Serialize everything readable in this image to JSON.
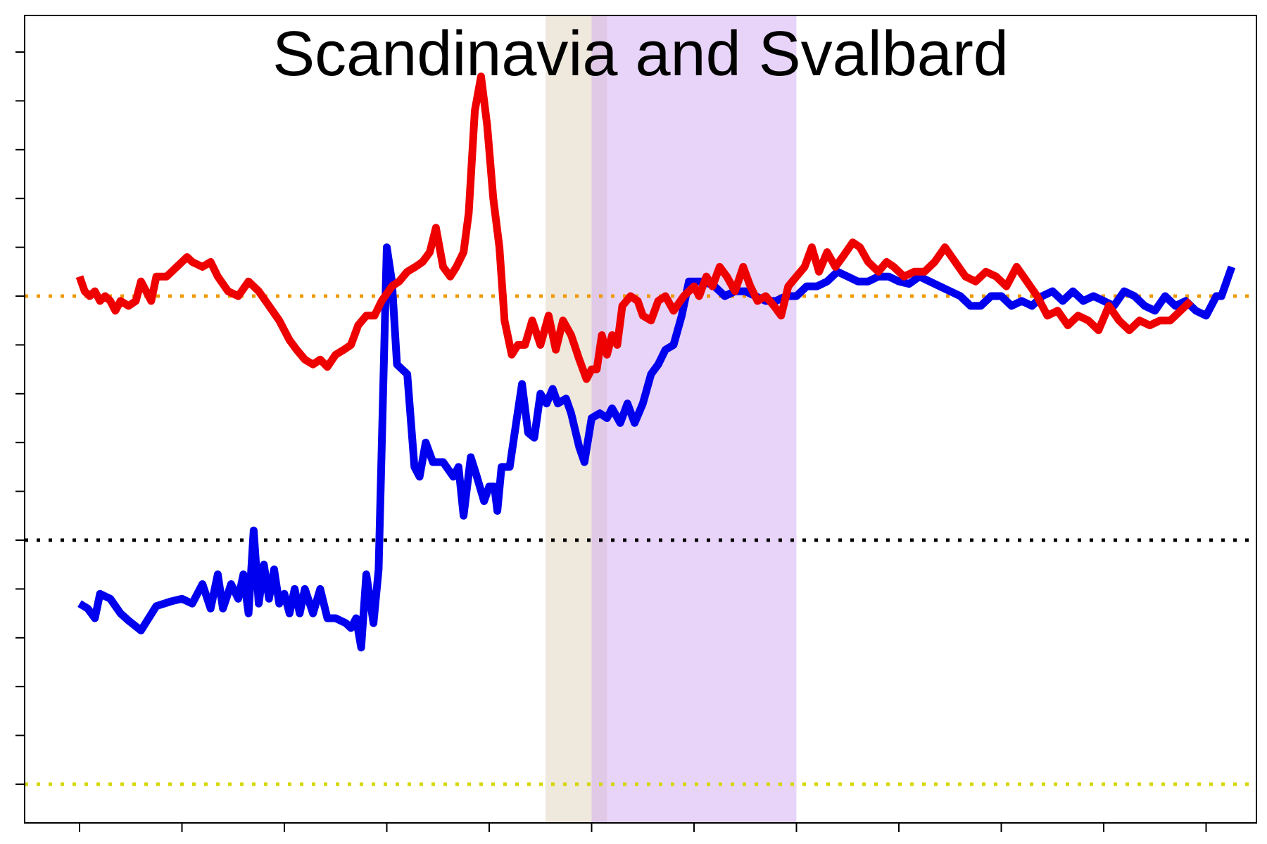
{
  "chart_data": {
    "type": "line",
    "title": "Scandinavia and Svalbard",
    "xlabel": "",
    "ylabel": "",
    "xlim": [
      0,
      11.5
    ],
    "ylim": [
      -5.6,
      10.8
    ],
    "x_ticks": [
      0,
      1,
      2,
      3,
      4,
      5,
      6,
      7,
      8,
      9,
      10,
      11
    ],
    "y_ticks": [
      -5,
      -4,
      -3,
      -2,
      -1,
      0,
      1,
      2,
      3,
      4,
      5,
      6,
      7,
      8,
      9,
      10
    ],
    "grid": false,
    "legend": "none",
    "shaded_regions": [
      {
        "x_start": 4.55,
        "x_end": 5.15,
        "color": "#e6dccb",
        "opacity": 0.65
      },
      {
        "x_start": 5.0,
        "x_end": 7.0,
        "color": "#d2a9f2",
        "opacity": 0.5
      }
    ],
    "reference_lines": [
      {
        "y": 5.0,
        "color": "#ee9900"
      },
      {
        "y": 0.0,
        "color": "#000000"
      },
      {
        "y": -5.0,
        "color": "#d6d600"
      }
    ],
    "series": [
      {
        "color": "#0000ee",
        "points": [
          [
            0,
            -1.3
          ],
          [
            0.08,
            -1.4
          ],
          [
            0.15,
            -1.6
          ],
          [
            0.2,
            -1.1
          ],
          [
            0.3,
            -1.2
          ],
          [
            0.4,
            -1.5
          ],
          [
            0.48,
            -1.65
          ],
          [
            0.6,
            -1.85
          ],
          [
            0.75,
            -1.35
          ],
          [
            0.9,
            -1.25
          ],
          [
            1.0,
            -1.2
          ],
          [
            1.1,
            -1.3
          ],
          [
            1.2,
            -0.9
          ],
          [
            1.28,
            -1.4
          ],
          [
            1.35,
            -0.7
          ],
          [
            1.4,
            -1.4
          ],
          [
            1.48,
            -0.9
          ],
          [
            1.55,
            -1.2
          ],
          [
            1.6,
            -0.7
          ],
          [
            1.65,
            -1.5
          ],
          [
            1.7,
            0.2
          ],
          [
            1.75,
            -1.3
          ],
          [
            1.8,
            -0.5
          ],
          [
            1.85,
            -1.2
          ],
          [
            1.9,
            -0.6
          ],
          [
            1.95,
            -1.3
          ],
          [
            2.0,
            -1.1
          ],
          [
            2.05,
            -1.5
          ],
          [
            2.1,
            -1.0
          ],
          [
            2.15,
            -1.5
          ],
          [
            2.2,
            -1.0
          ],
          [
            2.28,
            -1.5
          ],
          [
            2.35,
            -1.0
          ],
          [
            2.42,
            -1.6
          ],
          [
            2.5,
            -1.6
          ],
          [
            2.6,
            -1.7
          ],
          [
            2.65,
            -1.8
          ],
          [
            2.7,
            -1.6
          ],
          [
            2.75,
            -2.2
          ],
          [
            2.8,
            -0.7
          ],
          [
            2.87,
            -1.7
          ],
          [
            2.92,
            -0.6
          ],
          [
            2.96,
            2.7
          ],
          [
            3.0,
            6.0
          ],
          [
            3.05,
            5.3
          ],
          [
            3.1,
            3.6
          ],
          [
            3.15,
            3.5
          ],
          [
            3.2,
            3.4
          ],
          [
            3.27,
            1.5
          ],
          [
            3.32,
            1.3
          ],
          [
            3.38,
            2.0
          ],
          [
            3.45,
            1.6
          ],
          [
            3.55,
            1.6
          ],
          [
            3.65,
            1.3
          ],
          [
            3.7,
            1.5
          ],
          [
            3.75,
            0.5
          ],
          [
            3.82,
            1.7
          ],
          [
            3.88,
            1.3
          ],
          [
            3.95,
            0.8
          ],
          [
            4.0,
            1.1
          ],
          [
            4.05,
            1.1
          ],
          [
            4.08,
            0.6
          ],
          [
            4.12,
            1.5
          ],
          [
            4.2,
            1.5
          ],
          [
            4.27,
            2.5
          ],
          [
            4.32,
            3.2
          ],
          [
            4.38,
            2.2
          ],
          [
            4.44,
            2.1
          ],
          [
            4.5,
            3.0
          ],
          [
            4.56,
            2.8
          ],
          [
            4.62,
            3.1
          ],
          [
            4.67,
            2.8
          ],
          [
            4.75,
            2.9
          ],
          [
            4.8,
            2.6
          ],
          [
            4.88,
            1.9
          ],
          [
            4.93,
            1.6
          ],
          [
            5.0,
            2.5
          ],
          [
            5.08,
            2.6
          ],
          [
            5.15,
            2.5
          ],
          [
            5.2,
            2.7
          ],
          [
            5.28,
            2.4
          ],
          [
            5.35,
            2.8
          ],
          [
            5.42,
            2.4
          ],
          [
            5.5,
            2.8
          ],
          [
            5.58,
            3.4
          ],
          [
            5.65,
            3.6
          ],
          [
            5.72,
            3.9
          ],
          [
            5.8,
            4.0
          ],
          [
            5.88,
            4.6
          ],
          [
            5.95,
            5.3
          ],
          [
            6.0,
            5.3
          ],
          [
            6.1,
            5.3
          ],
          [
            6.2,
            5.2
          ],
          [
            6.3,
            5.0
          ],
          [
            6.4,
            5.1
          ],
          [
            6.5,
            5.1
          ],
          [
            6.6,
            5.0
          ],
          [
            6.7,
            4.9
          ],
          [
            6.8,
            4.9
          ],
          [
            6.9,
            5.0
          ],
          [
            7.0,
            5.0
          ],
          [
            7.1,
            5.2
          ],
          [
            7.2,
            5.2
          ],
          [
            7.3,
            5.3
          ],
          [
            7.4,
            5.5
          ],
          [
            7.5,
            5.4
          ],
          [
            7.6,
            5.3
          ],
          [
            7.7,
            5.3
          ],
          [
            7.8,
            5.4
          ],
          [
            7.9,
            5.4
          ],
          [
            8.0,
            5.3
          ],
          [
            8.1,
            5.25
          ],
          [
            8.2,
            5.4
          ],
          [
            8.3,
            5.3
          ],
          [
            8.4,
            5.2
          ],
          [
            8.5,
            5.1
          ],
          [
            8.6,
            5.0
          ],
          [
            8.7,
            4.8
          ],
          [
            8.8,
            4.8
          ],
          [
            8.9,
            5.0
          ],
          [
            9.0,
            5.0
          ],
          [
            9.1,
            4.8
          ],
          [
            9.2,
            4.9
          ],
          [
            9.3,
            4.8
          ],
          [
            9.4,
            5.0
          ],
          [
            9.5,
            5.1
          ],
          [
            9.6,
            4.9
          ],
          [
            9.7,
            5.1
          ],
          [
            9.8,
            4.9
          ],
          [
            9.9,
            5.0
          ],
          [
            10.0,
            4.9
          ],
          [
            10.1,
            4.8
          ],
          [
            10.2,
            5.1
          ],
          [
            10.3,
            5.0
          ],
          [
            10.4,
            4.8
          ],
          [
            10.5,
            4.7
          ],
          [
            10.6,
            5.0
          ],
          [
            10.7,
            4.8
          ],
          [
            10.8,
            4.9
          ],
          [
            10.9,
            4.7
          ],
          [
            11.0,
            4.6
          ],
          [
            11.05,
            4.8
          ],
          [
            11.1,
            5.0
          ],
          [
            11.15,
            5.0
          ],
          [
            11.2,
            5.3
          ],
          [
            11.25,
            5.6
          ]
        ]
      },
      {
        "color": "#ee0000",
        "points": [
          [
            0,
            5.4
          ],
          [
            0.05,
            5.1
          ],
          [
            0.1,
            5.0
          ],
          [
            0.15,
            5.1
          ],
          [
            0.2,
            4.9
          ],
          [
            0.25,
            5.0
          ],
          [
            0.3,
            4.9
          ],
          [
            0.35,
            4.7
          ],
          [
            0.4,
            4.9
          ],
          [
            0.48,
            4.8
          ],
          [
            0.55,
            4.9
          ],
          [
            0.6,
            5.3
          ],
          [
            0.65,
            5.1
          ],
          [
            0.7,
            4.9
          ],
          [
            0.75,
            5.4
          ],
          [
            0.85,
            5.4
          ],
          [
            0.95,
            5.6
          ],
          [
            1.05,
            5.8
          ],
          [
            1.1,
            5.7
          ],
          [
            1.2,
            5.6
          ],
          [
            1.28,
            5.7
          ],
          [
            1.35,
            5.4
          ],
          [
            1.45,
            5.1
          ],
          [
            1.55,
            5.0
          ],
          [
            1.65,
            5.3
          ],
          [
            1.75,
            5.1
          ],
          [
            1.85,
            4.8
          ],
          [
            1.95,
            4.5
          ],
          [
            2.05,
            4.1
          ],
          [
            2.12,
            3.9
          ],
          [
            2.2,
            3.7
          ],
          [
            2.28,
            3.6
          ],
          [
            2.35,
            3.7
          ],
          [
            2.42,
            3.55
          ],
          [
            2.5,
            3.8
          ],
          [
            2.58,
            3.9
          ],
          [
            2.65,
            4.0
          ],
          [
            2.72,
            4.4
          ],
          [
            2.8,
            4.6
          ],
          [
            2.88,
            4.6
          ],
          [
            2.95,
            4.9
          ],
          [
            3.05,
            5.2
          ],
          [
            3.12,
            5.3
          ],
          [
            3.2,
            5.5
          ],
          [
            3.28,
            5.6
          ],
          [
            3.35,
            5.7
          ],
          [
            3.42,
            5.9
          ],
          [
            3.48,
            6.4
          ],
          [
            3.55,
            5.6
          ],
          [
            3.62,
            5.4
          ],
          [
            3.68,
            5.6
          ],
          [
            3.75,
            5.9
          ],
          [
            3.8,
            6.7
          ],
          [
            3.86,
            8.8
          ],
          [
            3.92,
            9.5
          ],
          [
            3.98,
            8.5
          ],
          [
            4.04,
            7.0
          ],
          [
            4.1,
            6.0
          ],
          [
            4.15,
            4.5
          ],
          [
            4.22,
            3.8
          ],
          [
            4.28,
            4.0
          ],
          [
            4.35,
            4.0
          ],
          [
            4.42,
            4.5
          ],
          [
            4.5,
            4.0
          ],
          [
            4.58,
            4.6
          ],
          [
            4.65,
            3.9
          ],
          [
            4.72,
            4.5
          ],
          [
            4.8,
            4.2
          ],
          [
            4.88,
            3.7
          ],
          [
            4.95,
            3.3
          ],
          [
            5.0,
            3.5
          ],
          [
            5.05,
            3.5
          ],
          [
            5.1,
            4.2
          ],
          [
            5.15,
            3.8
          ],
          [
            5.2,
            4.2
          ],
          [
            5.25,
            4.0
          ],
          [
            5.3,
            4.8
          ],
          [
            5.38,
            5.0
          ],
          [
            5.45,
            4.9
          ],
          [
            5.5,
            4.6
          ],
          [
            5.58,
            4.5
          ],
          [
            5.65,
            4.9
          ],
          [
            5.72,
            5.0
          ],
          [
            5.8,
            4.7
          ],
          [
            5.9,
            5.0
          ],
          [
            6.0,
            5.2
          ],
          [
            6.05,
            5.0
          ],
          [
            6.12,
            5.4
          ],
          [
            6.18,
            5.2
          ],
          [
            6.25,
            5.6
          ],
          [
            6.32,
            5.4
          ],
          [
            6.4,
            5.1
          ],
          [
            6.48,
            5.6
          ],
          [
            6.55,
            5.2
          ],
          [
            6.62,
            4.9
          ],
          [
            6.7,
            5.0
          ],
          [
            6.78,
            4.8
          ],
          [
            6.85,
            4.6
          ],
          [
            6.92,
            5.2
          ],
          [
            7.0,
            5.4
          ],
          [
            7.08,
            5.6
          ],
          [
            7.15,
            6.0
          ],
          [
            7.22,
            5.5
          ],
          [
            7.3,
            5.9
          ],
          [
            7.38,
            5.6
          ],
          [
            7.45,
            5.8
          ],
          [
            7.55,
            6.1
          ],
          [
            7.62,
            6.0
          ],
          [
            7.7,
            5.7
          ],
          [
            7.8,
            5.5
          ],
          [
            7.88,
            5.7
          ],
          [
            7.95,
            5.6
          ],
          [
            8.05,
            5.4
          ],
          [
            8.15,
            5.5
          ],
          [
            8.25,
            5.5
          ],
          [
            8.35,
            5.7
          ],
          [
            8.45,
            6.0
          ],
          [
            8.55,
            5.7
          ],
          [
            8.65,
            5.4
          ],
          [
            8.75,
            5.3
          ],
          [
            8.85,
            5.5
          ],
          [
            8.95,
            5.4
          ],
          [
            9.05,
            5.2
          ],
          [
            9.15,
            5.6
          ],
          [
            9.25,
            5.3
          ],
          [
            9.35,
            5.0
          ],
          [
            9.45,
            4.6
          ],
          [
            9.55,
            4.7
          ],
          [
            9.65,
            4.4
          ],
          [
            9.75,
            4.6
          ],
          [
            9.85,
            4.5
          ],
          [
            9.95,
            4.3
          ],
          [
            10.05,
            4.8
          ],
          [
            10.15,
            4.5
          ],
          [
            10.25,
            4.3
          ],
          [
            10.35,
            4.5
          ],
          [
            10.45,
            4.4
          ],
          [
            10.55,
            4.5
          ],
          [
            10.65,
            4.5
          ],
          [
            10.75,
            4.7
          ],
          [
            10.85,
            4.9
          ]
        ]
      }
    ]
  }
}
